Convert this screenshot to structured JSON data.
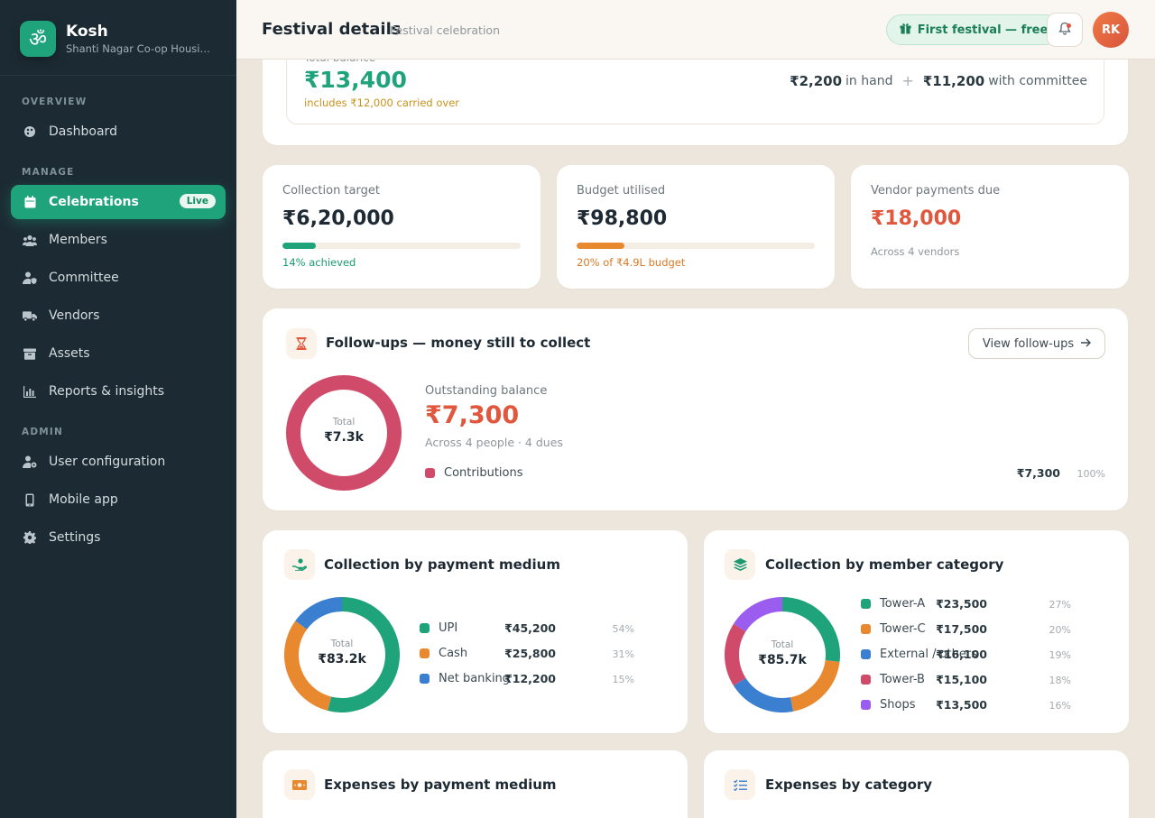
{
  "sidebar": {
    "brand_name": "Kosh",
    "brand_sub": "Shanti Nagar Co-op Housin…",
    "logo_glyph": "ॐ",
    "sections": {
      "overview": "OVERVIEW",
      "manage": "MANAGE",
      "admin": "ADMIN"
    },
    "items": [
      {
        "label": "Dashboard",
        "icon": "palette-icon"
      },
      {
        "label": "Celebrations",
        "icon": "calendar-icon",
        "badge": "Live",
        "active": true
      },
      {
        "label": "Members",
        "icon": "users-icon"
      },
      {
        "label": "Committee",
        "icon": "user-shield-icon"
      },
      {
        "label": "Vendors",
        "icon": "truck-icon"
      },
      {
        "label": "Assets",
        "icon": "archive-icon"
      },
      {
        "label": "Reports & insights",
        "icon": "chart-icon"
      },
      {
        "label": "User configuration",
        "icon": "user-gear-icon"
      },
      {
        "label": "Mobile app",
        "icon": "mobile-icon"
      },
      {
        "label": "Settings",
        "icon": "gear-icon"
      }
    ]
  },
  "header": {
    "title": "Festival details",
    "subtitle": "Festival celebration",
    "promo": "First festival — free",
    "avatar": "RK"
  },
  "balance": {
    "label": "Total balance",
    "value": "₹13,400",
    "note": "includes ₹12,000 carried over",
    "in_hand_amount": "₹2,200",
    "in_hand_label": "in hand",
    "committee_amount": "₹11,200",
    "committee_label": "with committee"
  },
  "stats": [
    {
      "label": "Collection target",
      "value": "₹6,20,000",
      "progress": 0.14,
      "note": "14% achieved",
      "color": "#1ea37a"
    },
    {
      "label": "Budget utilised",
      "value": "₹98,800",
      "progress": 0.2,
      "note": "20% of ₹4.9L budget",
      "color": "#e8892f"
    },
    {
      "label": "Vendor payments due",
      "value": "₹18,000",
      "note": "Across 4 vendors"
    }
  ],
  "followups": {
    "title": "Follow-ups — money still to collect",
    "button": "View follow-ups",
    "total_label": "Total",
    "total": "₹7.3k",
    "outstanding_label": "Outstanding balance",
    "outstanding_value": "₹7,300",
    "outstanding_sub": "Across 4 people · 4 dues",
    "legend": [
      {
        "label": "Contributions",
        "amount": "₹7,300",
        "pct": "100%",
        "color": "#d04a6a"
      }
    ]
  },
  "payment_medium": {
    "title": "Collection by payment medium",
    "total_label": "Total",
    "total": "₹83.2k",
    "legend": [
      {
        "label": "UPI",
        "amount": "₹45,200",
        "pct": "54%",
        "color": "#1ea37a"
      },
      {
        "label": "Cash",
        "amount": "₹25,800",
        "pct": "31%",
        "color": "#e8892f"
      },
      {
        "label": "Net banking",
        "amount": "₹12,200",
        "pct": "15%",
        "color": "#3b7fd0"
      }
    ]
  },
  "member_category": {
    "title": "Collection by member category",
    "total_label": "Total",
    "total": "₹85.7k",
    "legend": [
      {
        "label": "Tower-A",
        "amount": "₹23,500",
        "pct": "27%",
        "color": "#1ea37a"
      },
      {
        "label": "Tower-C",
        "amount": "₹17,500",
        "pct": "20%",
        "color": "#e8892f"
      },
      {
        "label": "External / others",
        "amount": "₹16,100",
        "pct": "19%",
        "color": "#3b7fd0"
      },
      {
        "label": "Tower-B",
        "amount": "₹15,100",
        "pct": "18%",
        "color": "#d04a6a"
      },
      {
        "label": "Shops",
        "amount": "₹13,500",
        "pct": "16%",
        "color": "#9b5cf0"
      }
    ]
  },
  "expenses": {
    "payment_title": "Expenses by payment medium",
    "category_title": "Expenses by category"
  }
}
